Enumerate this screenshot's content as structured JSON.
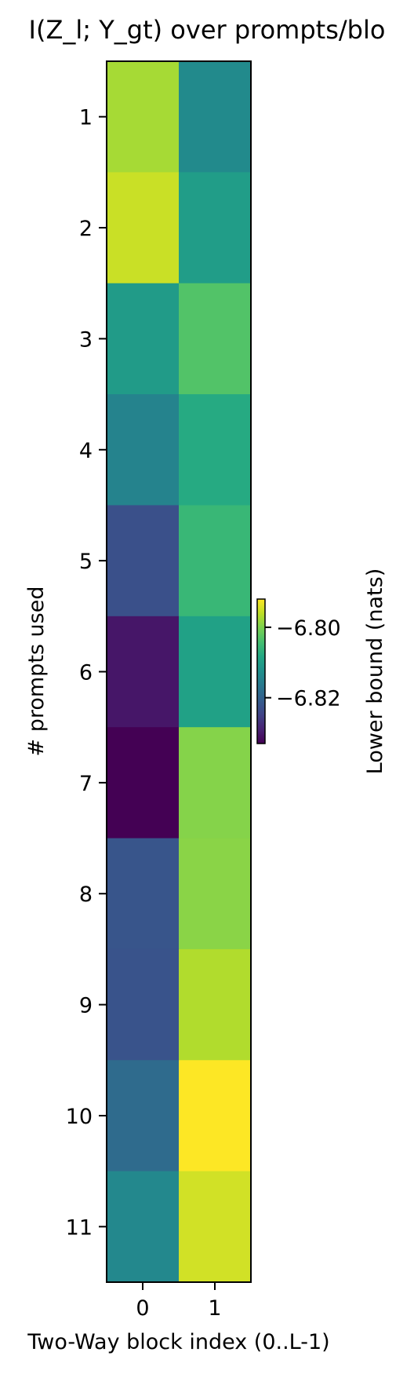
{
  "chart_data": {
    "type": "heatmap",
    "title": "I(Z_l; Y_gt) over prompts/blo",
    "xlabel": "Two-Way block index (0..L-1)",
    "ylabel": "# prompts used",
    "x_ticks": [
      "0",
      "1"
    ],
    "y_ticks": [
      "1",
      "2",
      "3",
      "4",
      "5",
      "6",
      "7",
      "8",
      "9",
      "10",
      "11"
    ],
    "colorbar": {
      "label": "Lower bound (nats)",
      "ticks": [
        "−6.80",
        "−6.82"
      ],
      "tick_values": [
        -6.8,
        -6.82
      ],
      "range": [
        -6.833,
        -6.792
      ],
      "colormap": "viridis"
    },
    "values": [
      [
        -6.7975,
        -6.8135
      ],
      [
        -6.7953,
        -6.8102
      ],
      [
        -6.8106,
        -6.8032
      ],
      [
        -6.8148,
        -6.8079
      ],
      [
        -6.8228,
        -6.8056
      ],
      [
        -6.8305,
        -6.8095
      ],
      [
        -6.833,
        -6.7995
      ],
      [
        -6.822,
        -6.7992
      ],
      [
        -6.8224,
        -6.7968
      ],
      [
        -6.8187,
        -6.792
      ],
      [
        -6.8138,
        -6.7948
      ]
    ]
  }
}
